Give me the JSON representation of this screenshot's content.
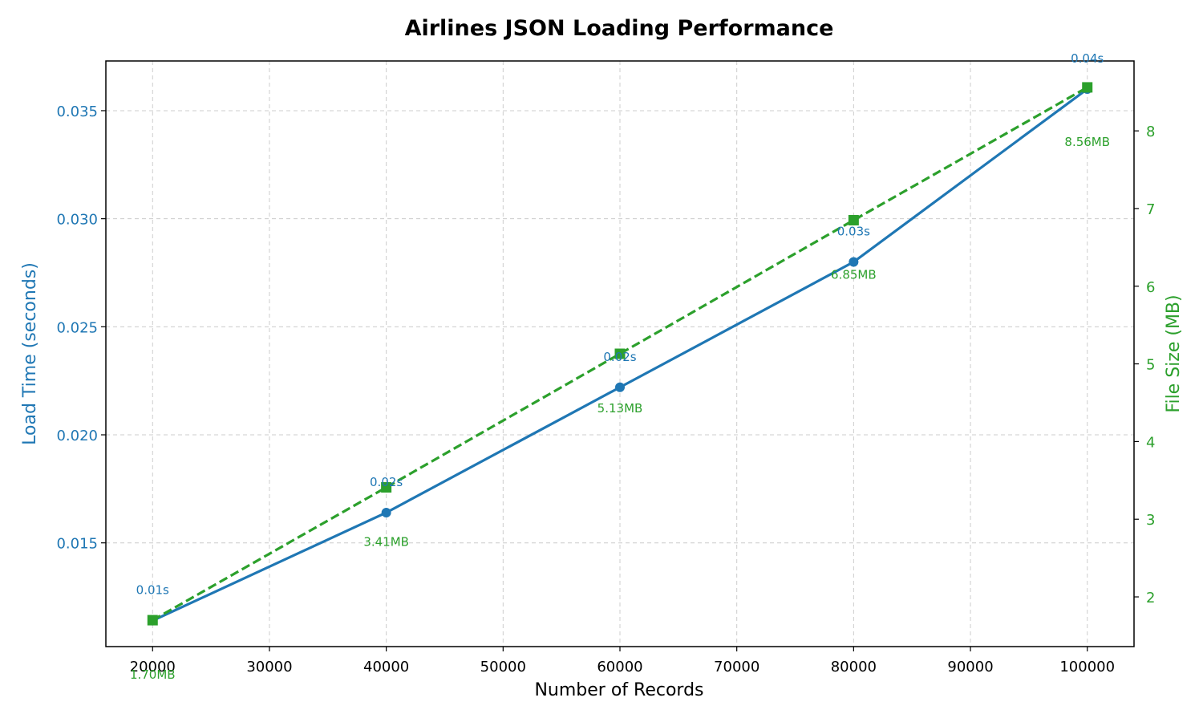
{
  "chart_data": {
    "type": "line",
    "title": "Airlines JSON Loading Performance",
    "xlabel": "Number of Records",
    "ylabel": "Load Time (seconds)",
    "y2label": "File Size (MB)",
    "x": [
      20000,
      40000,
      60000,
      80000,
      100000
    ],
    "xlim": [
      16000,
      104000
    ],
    "xticks": [
      20000,
      30000,
      40000,
      50000,
      60000,
      70000,
      80000,
      90000,
      100000
    ],
    "ylim": [
      0.0102,
      0.0373
    ],
    "yticks": [
      0.015,
      0.02,
      0.025,
      0.03,
      0.035
    ],
    "ytick_labels": [
      "0.015",
      "0.020",
      "0.025",
      "0.030",
      "0.035"
    ],
    "y2lim": [
      1.36,
      8.9
    ],
    "y2ticks": [
      2,
      3,
      4,
      5,
      6,
      7,
      8
    ],
    "grid": true,
    "series": [
      {
        "axis": "left",
        "color": "#1f77b4",
        "marker": "circle",
        "line": "solid",
        "values": [
          0.0114,
          0.0164,
          0.0222,
          0.028,
          0.036
        ],
        "labels": [
          "0.01s",
          "0.02s",
          "0.02s",
          "0.03s",
          "0.04s"
        ]
      },
      {
        "axis": "right",
        "color": "#2ca02c",
        "marker": "square",
        "line": "dashed",
        "values": [
          1.7,
          3.41,
          5.13,
          6.85,
          8.56
        ],
        "labels": [
          "1.70MB",
          "3.41MB",
          "5.13MB",
          "6.85MB",
          "8.56MB"
        ]
      }
    ]
  }
}
